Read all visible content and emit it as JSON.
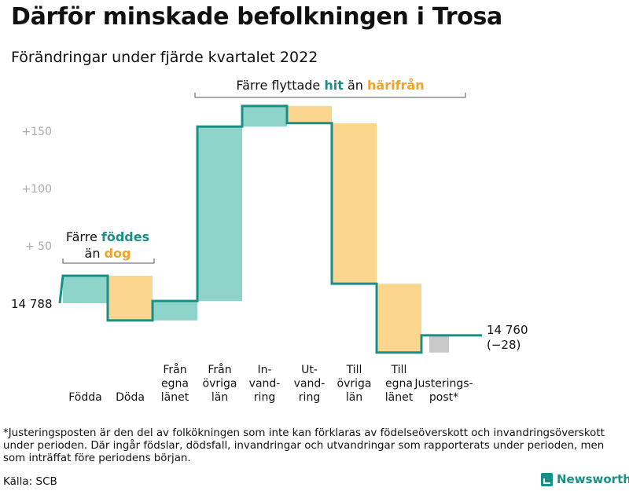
{
  "title": "Därför minskade befolkningen i Trosa",
  "subtitle": "Förändringar under fjärde kvartalet 2022",
  "footnote": "*Justeringsposten är den del av folkökningen som inte kan förklaras av födelseöverskott och invandringsöverskott under perioden. Där ingår födslar, dödsfall, invandringar och utvandringar som rapporterats under perioden, men som inträffat före periodens början.",
  "source": "Källa: SCB",
  "brand": "Newsworthy",
  "colors": {
    "increase": "#8fd4ca",
    "decrease": "#fcd68f",
    "adjustment": "#c8c8c8",
    "line": "#1a8f88",
    "gray_text": "#aaaaaa",
    "accent_teal": "#1a8f88",
    "accent_orange": "#f0a328"
  },
  "chart_data": {
    "type": "waterfall",
    "start": {
      "value": 14788,
      "label": "14 788"
    },
    "end": {
      "value": 14760,
      "label": "14 760",
      "change_label": "(−28)"
    },
    "steps": [
      {
        "label": [
          "Födda"
        ],
        "value": 24
      },
      {
        "label": [
          "Döda"
        ],
        "value": -39
      },
      {
        "label": [
          "Från",
          "egna",
          "länet"
        ],
        "value": 17
      },
      {
        "label": [
          "Från",
          "övriga",
          "län"
        ],
        "value": 152
      },
      {
        "label": [
          "In-",
          "vand-",
          "ring"
        ],
        "value": 18
      },
      {
        "label": [
          "Ut-",
          "vand-",
          "ring"
        ],
        "value": -15
      },
      {
        "label": [
          "Till",
          "övriga",
          "län"
        ],
        "value": -140
      },
      {
        "label": [
          "Till",
          "egna",
          "länet"
        ],
        "value": -60
      },
      {
        "label": [
          "Justerings-",
          "post*"
        ],
        "value": 15,
        "type": "adjustment"
      }
    ],
    "y_ticks": [
      {
        "value": 50,
        "label": "+ 50"
      },
      {
        "value": 100,
        "label": "+100"
      },
      {
        "value": 150,
        "label": "+150"
      }
    ],
    "annotations": [
      {
        "parts": [
          {
            "text": "Färre "
          },
          {
            "text": "föddes",
            "color": "accent_teal"
          }
        ],
        "line2": [
          {
            "text": "än "
          },
          {
            "text": "dog",
            "color": "accent_orange"
          }
        ]
      },
      {
        "parts": [
          {
            "text": "Färre flyttade "
          },
          {
            "text": "hit",
            "color": "accent_teal"
          },
          {
            "text": " än "
          },
          {
            "text": "härifrån",
            "color": "accent_orange"
          }
        ]
      }
    ]
  }
}
